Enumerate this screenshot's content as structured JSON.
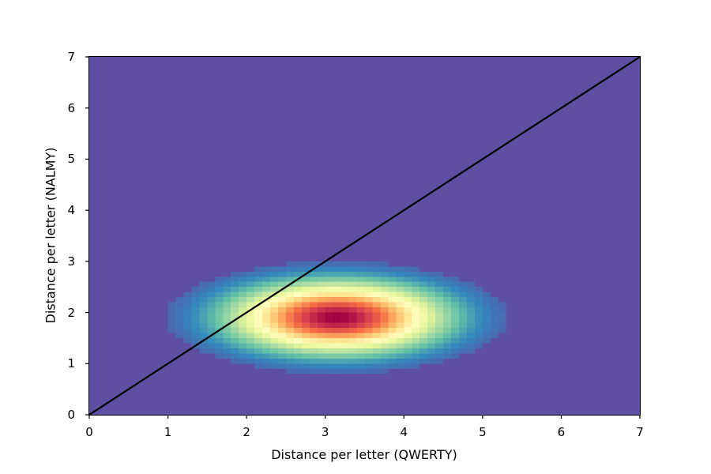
{
  "chart_data": {
    "type": "heatmap",
    "title": "",
    "xlabel": "Distance per letter (QWERTY)",
    "ylabel": "Distance per letter (NALMY)",
    "xlim": [
      0,
      7
    ],
    "ylim": [
      0,
      7
    ],
    "x_ticks": [
      "0",
      "1",
      "2",
      "3",
      "4",
      "5",
      "6",
      "7"
    ],
    "y_ticks": [
      "0",
      "1",
      "2",
      "3",
      "4",
      "5",
      "6",
      "7"
    ],
    "colormap": "Spectral_r",
    "background_color": "#5e4fa2",
    "bin_size": 0.1,
    "density_peak": {
      "x": 3.15,
      "y": 1.9
    },
    "density_spread": {
      "x_sigma": 0.75,
      "y_sigma": 0.38
    },
    "density_extent": {
      "x": [
        1.5,
        4.9
      ],
      "y": [
        0.9,
        2.9
      ]
    },
    "reference_line": {
      "label": "y = x",
      "from": [
        0,
        0
      ],
      "to": [
        7,
        7
      ],
      "color": "#000000"
    },
    "grid": false,
    "legend": null
  },
  "axes": {
    "x_tick_labels": [
      "0",
      "1",
      "2",
      "3",
      "4",
      "5",
      "6",
      "7"
    ],
    "y_tick_labels": [
      "0",
      "1",
      "2",
      "3",
      "4",
      "5",
      "6",
      "7"
    ]
  }
}
